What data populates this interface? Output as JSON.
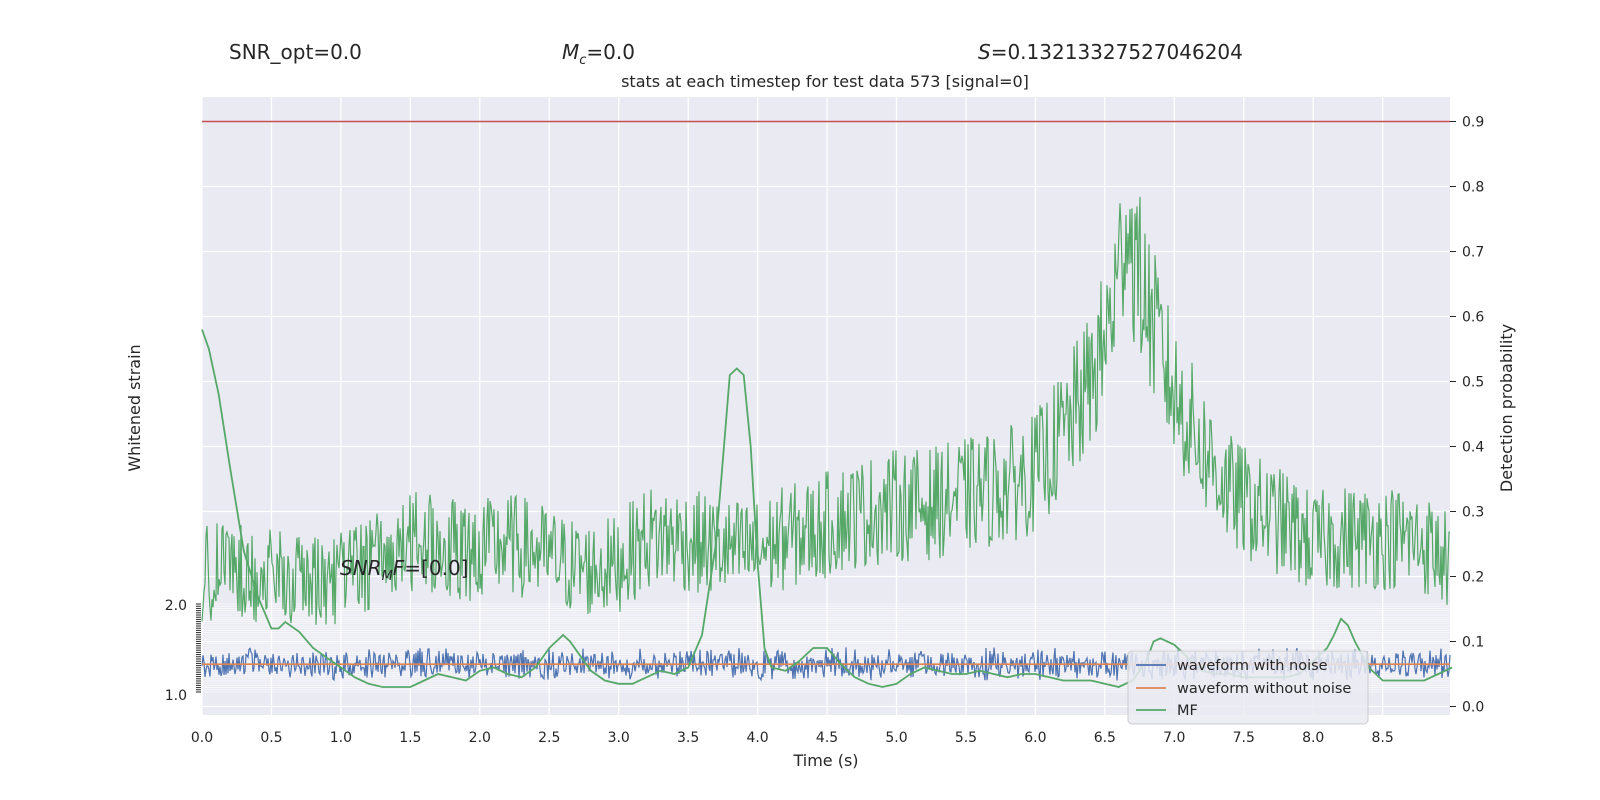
{
  "header": {
    "snr_opt": "SNR_opt=0.0",
    "mc_sym": "M",
    "mc_sub": "c",
    "mc_val": "=0.0",
    "s_sym": "S",
    "s_val": "=0.13213327527046204",
    "subtitle": "stats at each timestep for test data 573 [signal=0]"
  },
  "chart_data": {
    "type": "line",
    "xlabel": "Time (s)",
    "ylabel_left": "Whitened strain",
    "ylabel_right": "Detection probability",
    "xlim": [
      0.0,
      9.0
    ],
    "ylim_right": [
      -0.01,
      0.94
    ],
    "xticks": [
      "0.0",
      "0.5",
      "1.0",
      "1.5",
      "2.0",
      "2.5",
      "3.0",
      "3.5",
      "4.0",
      "4.5",
      "5.0",
      "5.5",
      "6.0",
      "6.5",
      "7.0",
      "7.5",
      "8.0",
      "8.5"
    ],
    "yticks_right": [
      "0.0",
      "0.1",
      "0.2",
      "0.3",
      "0.4",
      "0.5",
      "0.6",
      "0.7",
      "0.8",
      "0.9"
    ],
    "left_ticks_visible": [
      "2.0",
      "1.0"
    ],
    "threshold": 0.9,
    "threshold_color": "#c44e52",
    "annotation": {
      "sym": "SNR",
      "sub": "M",
      "sym2": "F",
      "val": "=[0.0]"
    },
    "legend": {
      "placement": "lower-right",
      "entries": [
        "waveform with noise",
        "waveform without noise",
        "MF"
      ]
    },
    "series": [
      {
        "name": "waveform with noise",
        "color": "#4c72b0",
        "kind": "noise",
        "center": 0.065,
        "amplitude": 0.022
      },
      {
        "name": "waveform without noise",
        "color": "#dd8452",
        "constant": 0.065
      },
      {
        "name": "MF",
        "color": "#55a868",
        "x": [
          0.0,
          0.05,
          0.12,
          0.2,
          0.3,
          0.4,
          0.5,
          0.55,
          0.6,
          0.7,
          0.8,
          0.9,
          1.0,
          1.1,
          1.2,
          1.3,
          1.4,
          1.5,
          1.6,
          1.7,
          1.8,
          1.9,
          2.0,
          2.1,
          2.2,
          2.3,
          2.4,
          2.5,
          2.6,
          2.65,
          2.7,
          2.8,
          2.9,
          3.0,
          3.1,
          3.2,
          3.3,
          3.4,
          3.5,
          3.6,
          3.7,
          3.75,
          3.8,
          3.85,
          3.9,
          3.95,
          4.0,
          4.05,
          4.1,
          4.2,
          4.3,
          4.4,
          4.5,
          4.6,
          4.7,
          4.8,
          4.9,
          5.0,
          5.1,
          5.2,
          5.3,
          5.4,
          5.5,
          5.6,
          5.7,
          5.8,
          5.9,
          6.0,
          6.1,
          6.2,
          6.3,
          6.4,
          6.5,
          6.6,
          6.7,
          6.8,
          6.85,
          6.9,
          7.0,
          7.1,
          7.2,
          7.3,
          7.4,
          7.5,
          7.6,
          7.7,
          7.8,
          7.9,
          8.0,
          8.1,
          8.15,
          8.2,
          8.25,
          8.3,
          8.4,
          8.5,
          8.6,
          8.7,
          8.8,
          8.9,
          9.0
        ],
        "y": [
          0.58,
          0.55,
          0.48,
          0.37,
          0.24,
          0.17,
          0.12,
          0.12,
          0.13,
          0.115,
          0.09,
          0.075,
          0.06,
          0.045,
          0.035,
          0.03,
          0.03,
          0.03,
          0.04,
          0.05,
          0.045,
          0.04,
          0.055,
          0.06,
          0.05,
          0.045,
          0.06,
          0.09,
          0.11,
          0.1,
          0.085,
          0.055,
          0.04,
          0.035,
          0.035,
          0.045,
          0.055,
          0.05,
          0.06,
          0.11,
          0.25,
          0.38,
          0.51,
          0.52,
          0.51,
          0.4,
          0.22,
          0.09,
          0.06,
          0.055,
          0.07,
          0.09,
          0.09,
          0.065,
          0.045,
          0.035,
          0.03,
          0.035,
          0.05,
          0.06,
          0.055,
          0.05,
          0.05,
          0.055,
          0.05,
          0.045,
          0.05,
          0.05,
          0.045,
          0.04,
          0.04,
          0.04,
          0.035,
          0.03,
          0.04,
          0.07,
          0.1,
          0.105,
          0.095,
          0.075,
          0.055,
          0.05,
          0.05,
          0.045,
          0.045,
          0.045,
          0.045,
          0.05,
          0.07,
          0.09,
          0.11,
          0.135,
          0.125,
          0.1,
          0.06,
          0.04,
          0.04,
          0.04,
          0.04,
          0.05,
          0.06
        ]
      },
      {
        "name": "detection probability",
        "color": "#55a868",
        "kind": "noisy",
        "x": [
          0.0,
          0.2,
          0.4,
          0.6,
          0.8,
          1.0,
          1.2,
          1.4,
          1.6,
          1.8,
          2.0,
          2.2,
          2.4,
          2.6,
          2.8,
          3.0,
          3.2,
          3.4,
          3.6,
          3.8,
          4.0,
          4.2,
          4.4,
          4.6,
          4.8,
          5.0,
          5.2,
          5.4,
          5.6,
          5.8,
          6.0,
          6.2,
          6.4,
          6.5,
          6.6,
          6.65,
          6.7,
          6.8,
          6.9,
          7.0,
          7.2,
          7.4,
          7.6,
          7.8,
          8.0,
          8.2,
          8.4,
          8.6,
          8.8,
          9.0
        ],
        "y": [
          0.2,
          0.22,
          0.2,
          0.2,
          0.19,
          0.2,
          0.22,
          0.24,
          0.26,
          0.24,
          0.24,
          0.25,
          0.24,
          0.22,
          0.21,
          0.22,
          0.26,
          0.26,
          0.25,
          0.24,
          0.24,
          0.26,
          0.27,
          0.29,
          0.3,
          0.31,
          0.31,
          0.32,
          0.33,
          0.34,
          0.36,
          0.42,
          0.5,
          0.56,
          0.66,
          0.76,
          0.7,
          0.62,
          0.55,
          0.48,
          0.4,
          0.33,
          0.3,
          0.28,
          0.25,
          0.26,
          0.26,
          0.26,
          0.25,
          0.22
        ]
      }
    ]
  }
}
